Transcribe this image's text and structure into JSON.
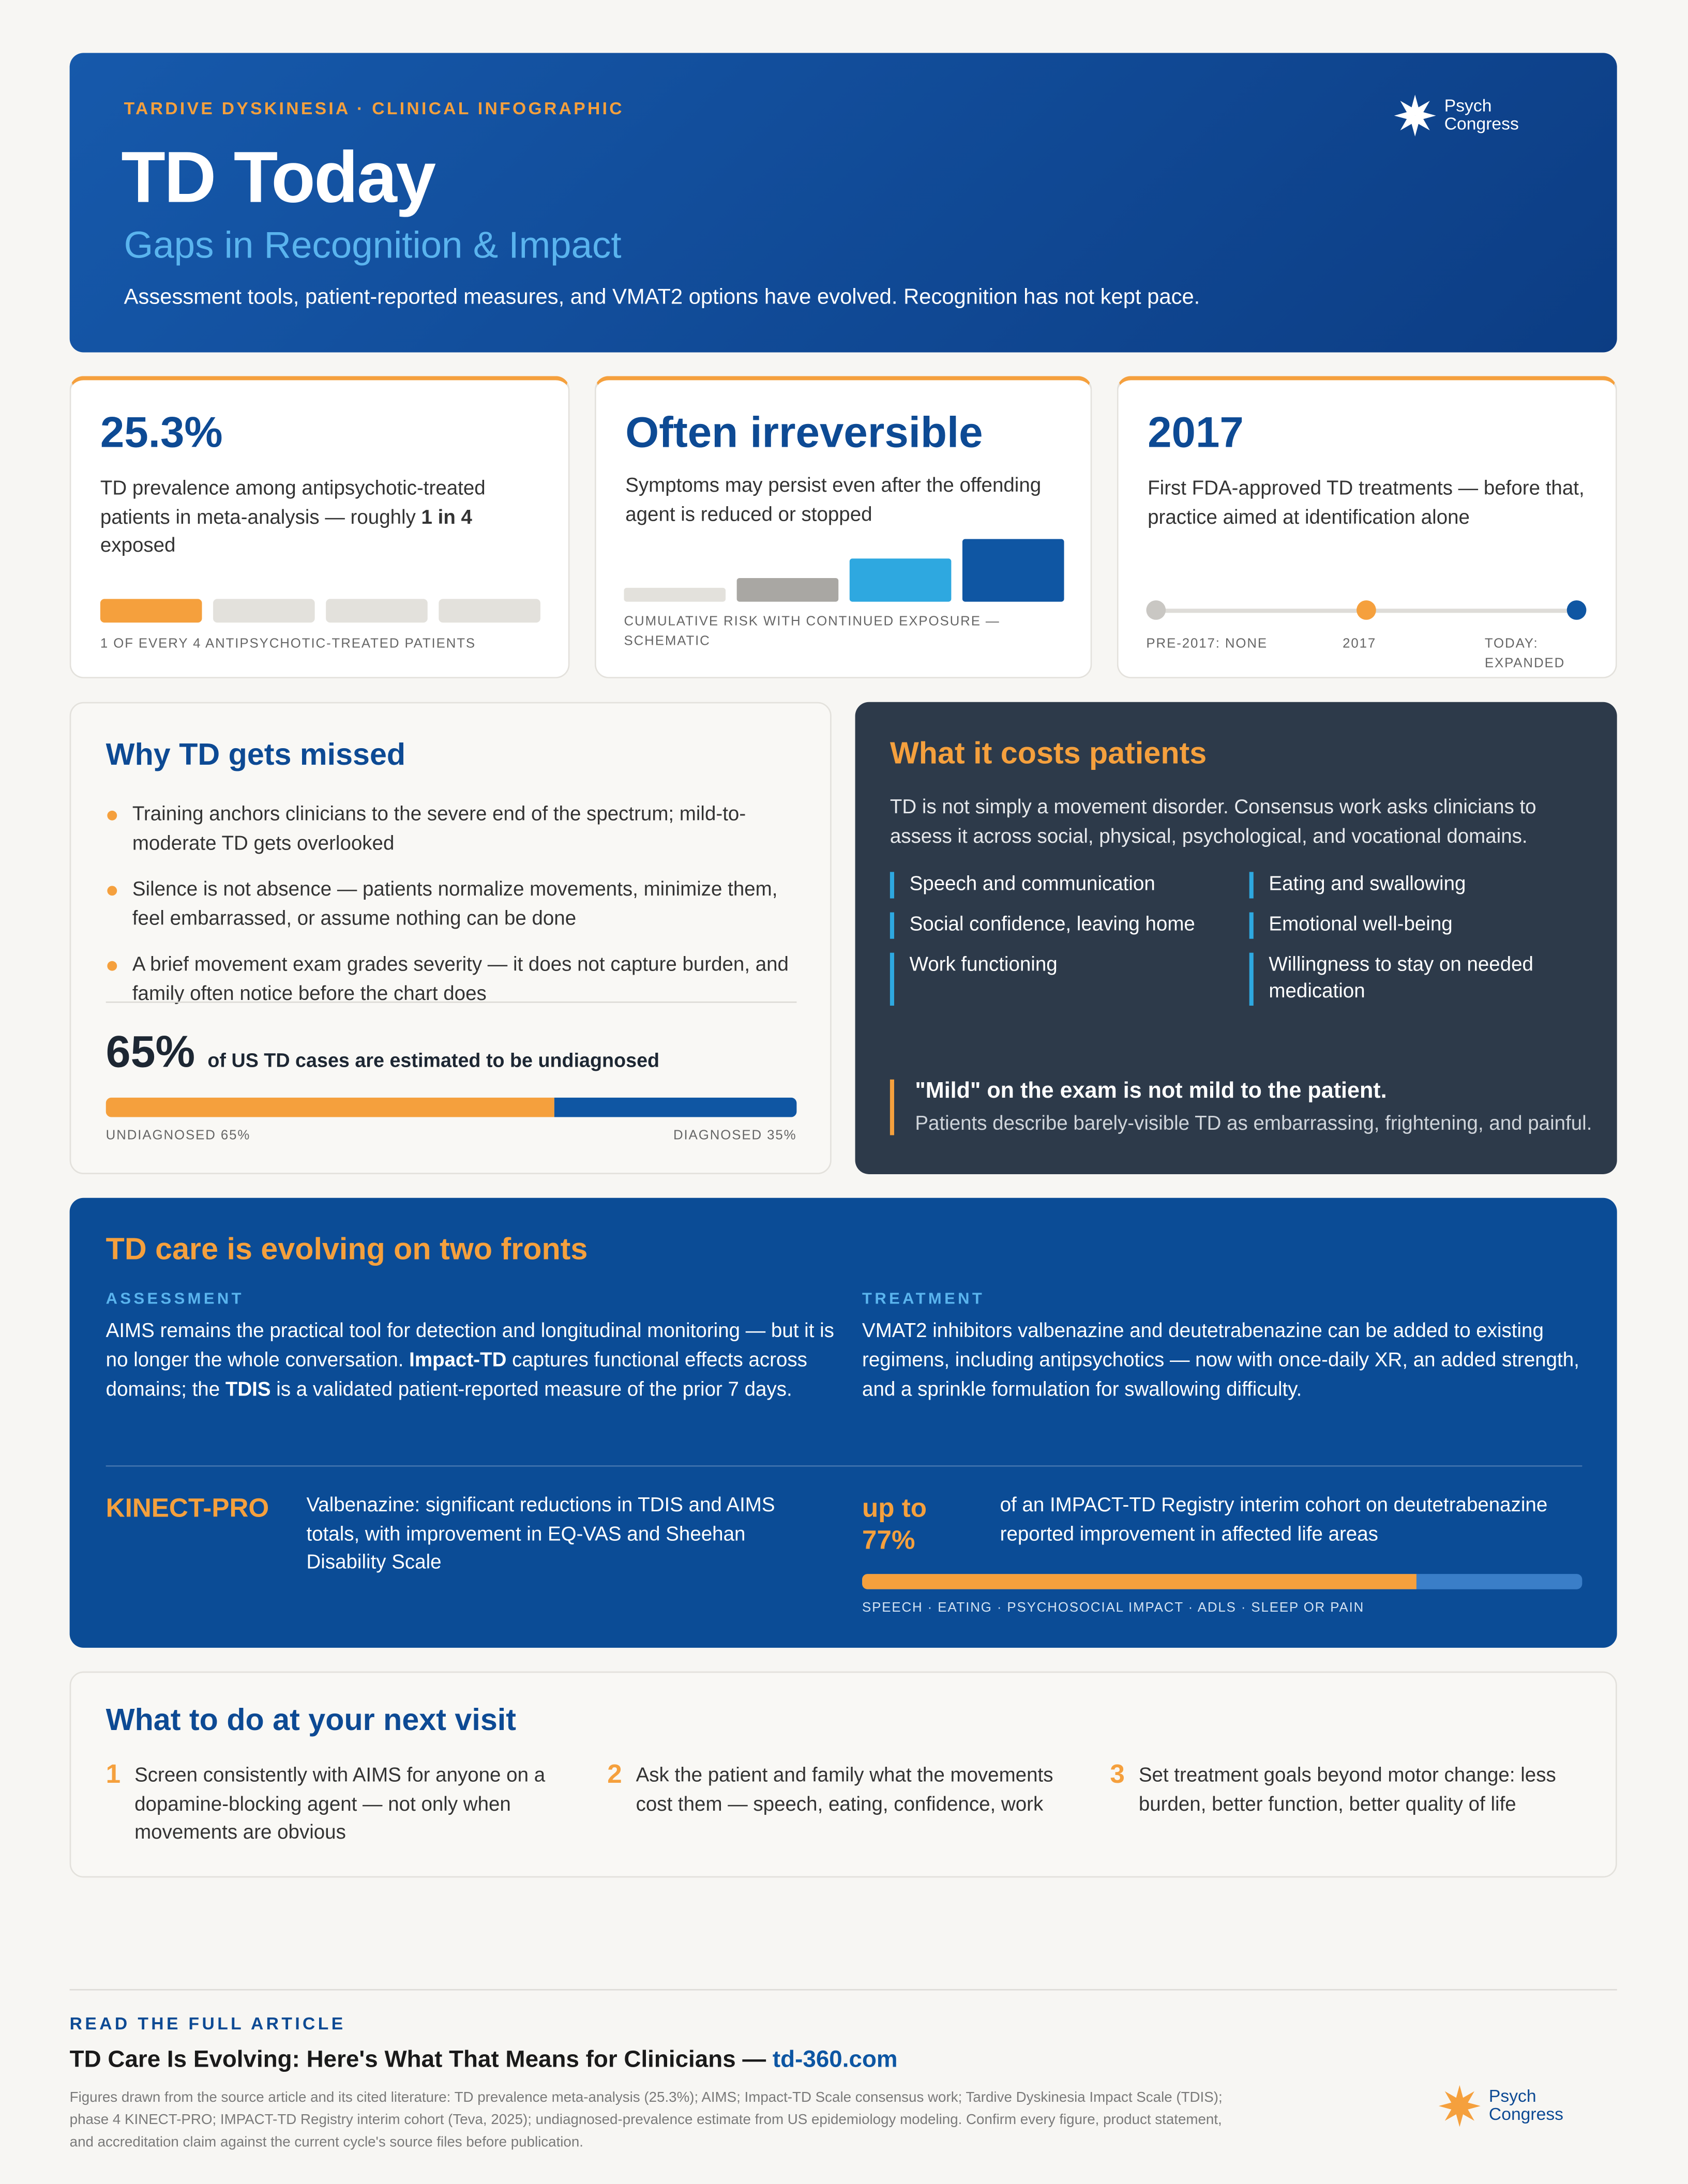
{
  "header": {
    "eyebrow": "TARDIVE DYSKINESIA · CLINICAL INFOGRAPHIC",
    "title": "TD Today",
    "subtitle": "Gaps in Recognition & Impact",
    "intro": "Assessment tools, patient-reported measures, and VMAT2 options have evolved. Recognition has not kept pace.",
    "logo": [
      "Psych",
      "Congress"
    ]
  },
  "stats": [
    {
      "headline": "25.3%",
      "text": [
        "TD prevalence among antipsychotic-treated patients in meta-analysis — roughly ",
        "1 in 4",
        " exposed"
      ],
      "caption": "1 OF EVERY 4 ANTIPSYCHOTIC-TREATED PATIENTS"
    },
    {
      "headline": "Often irreversible",
      "text": [
        "Symptoms may persist even after the offending agent is reduced or stopped"
      ],
      "caption": "CUMULATIVE RISK WITH CONTINUED EXPOSURE — SCHEMATIC"
    },
    {
      "headline": "2017",
      "text": [
        "First FDA-approved TD treatments — before that, practice aimed at identification alone"
      ],
      "timeline": [
        "PRE-2017: NONE",
        "2017",
        "TODAY: EXPANDED"
      ]
    }
  ],
  "missed": {
    "title": "Why TD gets missed",
    "bullets": [
      "Training anchors clinicians to the severe end of the spectrum; mild-to-moderate TD gets overlooked",
      "Silence is not absence — patients normalize movements, minimize them, feel embarrassed, or assume nothing can be done",
      "A brief movement exam grades severity — it does not capture burden, and family often notice before the chart does"
    ],
    "stat": "65%",
    "stat_text": "of US TD cases are estimated to be undiagnosed",
    "bar": {
      "undiagnosed": 65,
      "diagnosed": 35
    },
    "bar_labels": [
      "UNDIAGNOSED 65%",
      "DIAGNOSED 35%"
    ]
  },
  "costs": {
    "title": "What it costs patients",
    "intro": "TD is not simply a movement disorder. Consensus work asks clinicians to assess it across social, physical, psychological, and vocational domains.",
    "domains": [
      "Speech and communication",
      "Eating and swallowing",
      "Social confidence, leaving home",
      "Emotional well-being",
      "Work functioning",
      "Willingness to stay on needed medication"
    ],
    "quote": "\"Mild\" on the exam is not mild to the patient.",
    "quote_text": "Patients describe barely-visible TD as embarrassing, frightening, and painful."
  },
  "evolving": {
    "title": "TD care is evolving on two fronts",
    "columns": [
      {
        "label": "ASSESSMENT",
        "text": [
          "AIMS remains the practical tool for detection and longitudinal monitoring — but it is no longer the whole conversation. ",
          "Impact-TD",
          " captures functional effects across domains; the ",
          "TDIS",
          " is a validated patient-reported measure of the prior 7 days."
        ]
      },
      {
        "label": "TREATMENT",
        "text": [
          "VMAT2 inhibitors valbenazine and deutetrabenazine can be added to existing regimens, including antipsychotics — now with once-daily XR, an added strength, and a sprinkle formulation for swallowing difficulty."
        ]
      }
    ],
    "kinect": {
      "label": "KINECT-PRO",
      "text": "Valbenazine: significant reductions in TDIS and AIMS totals, with improvement in EQ-VAS and Sheehan Disability Scale"
    },
    "impact": {
      "stat": {
        "value": 77,
        "label": "up to 77%"
      },
      "text": "of an IMPACT-TD Registry interim cohort on deutetrabenazine reported improvement in affected life areas",
      "caption": "SPEECH · EATING · PSYCHOSOCIAL IMPACT · ADLS · SLEEP OR PAIN"
    }
  },
  "next_visit": {
    "title": "What to do at your next visit",
    "steps": [
      {
        "number": "1",
        "text": "Screen consistently with AIMS for anyone on a dopamine-blocking agent — not only when movements are obvious"
      },
      {
        "number": "2",
        "text": "Ask the patient and family what the movements cost them — speech, eating, confidence, work"
      },
      {
        "number": "3",
        "text": "Set treatment goals beyond motor change: less burden, better function, better quality of life"
      }
    ]
  },
  "footer": {
    "eyebrow": "READ THE FULL ARTICLE",
    "article": "TD Care Is Evolving: Here's What That Means for Clinicians — ",
    "link": "td-360.com",
    "note": "Figures drawn from the source article and its cited literature: TD prevalence meta-analysis (25.3%); AIMS; Impact-TD Scale consensus work; Tardive Dyskinesia Impact Scale (TDIS); phase 4 KINECT-PRO; IMPACT-TD Registry interim cohort (Teva, 2025); undiagnosed-prevalence estimate from US epidemiology modeling. Confirm every figure, product statement, and accreditation claim against the current cycle's source files before publication.",
    "logo": [
      "Psych",
      "Congress"
    ]
  }
}
